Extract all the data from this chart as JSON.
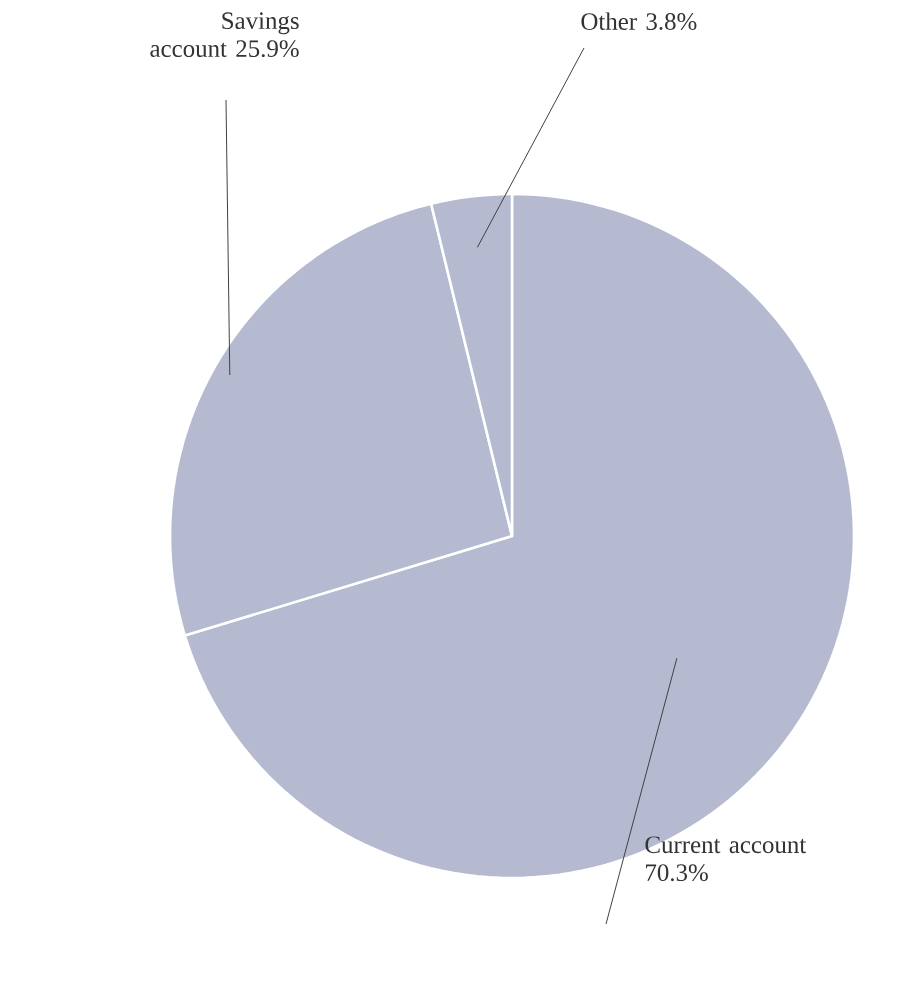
{
  "chart_data": {
    "type": "pie",
    "categories": [
      "Current account",
      "Savings account",
      "Other"
    ],
    "values": [
      70.3,
      25.9,
      3.8
    ],
    "value_labels": [
      "70.3%",
      "25.9%",
      "3.8%"
    ],
    "colors": [
      "#b5bad0",
      "#b5bad0",
      "#b5bad0"
    ]
  }
}
